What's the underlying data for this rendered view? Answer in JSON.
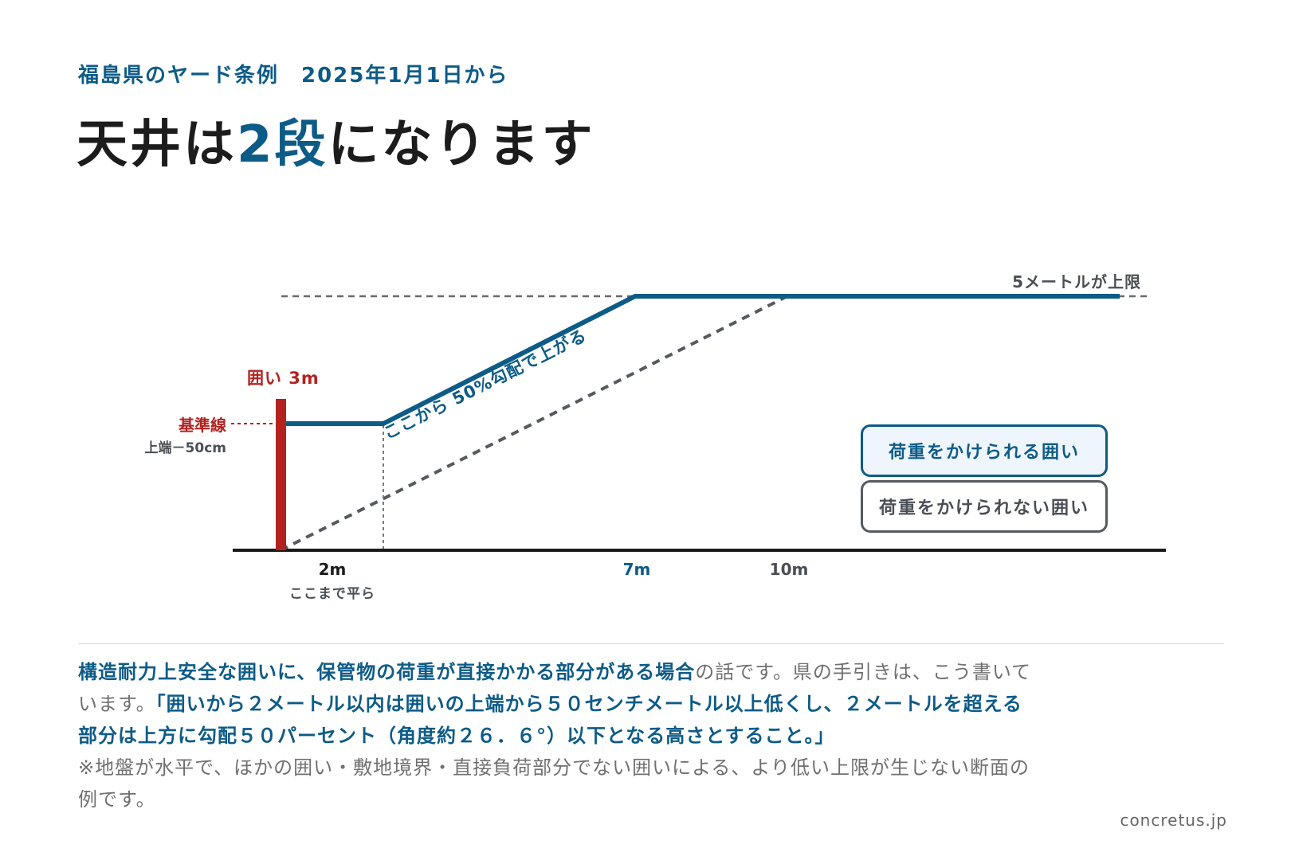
{
  "header": {
    "subtitle": "福島県のヤード条例　2025年1月1日から",
    "title_part1": "天井は",
    "title_accent": "2段",
    "title_part2": "になります"
  },
  "diagram": {
    "limit_label": "5メートルが上限",
    "fence_label": "囲い 3m",
    "baseline_label": "基準線",
    "baseline_sub": "上端－50cm",
    "slope_label": "ここから 50%勾配で上がる",
    "x_labels": {
      "two_m": "2m",
      "two_m_note": "ここまで平ら",
      "seven_m": "7m",
      "ten_m": "10m"
    },
    "legend": {
      "load": "荷重をかけられる囲い",
      "noload": "荷重をかけられない囲い"
    },
    "colors": {
      "load": "#0d5b87",
      "noload": "#555a60",
      "fence": "#b3221f",
      "ground": "#1a1a1a"
    }
  },
  "body": {
    "b1": "構造耐力上安全な囲いに、保管物の荷重が直接かかる部分がある場合",
    "t1": "の話です。県の手引きは、こう書いています。",
    "b2": "「囲いから２メートル以内は囲いの上端から５０センチメートル以上低くし、２メートルを超える部分は上方に勾配５０パーセント（角度約２６．６°）以下となる高さとすること。」",
    "t2": "※地盤が水平で、ほかの囲い・敷地境界・直接負荷部分でない囲いによる、より低い上限が生じない断面の例です。"
  },
  "footer": {
    "credit": "concretus.jp"
  }
}
